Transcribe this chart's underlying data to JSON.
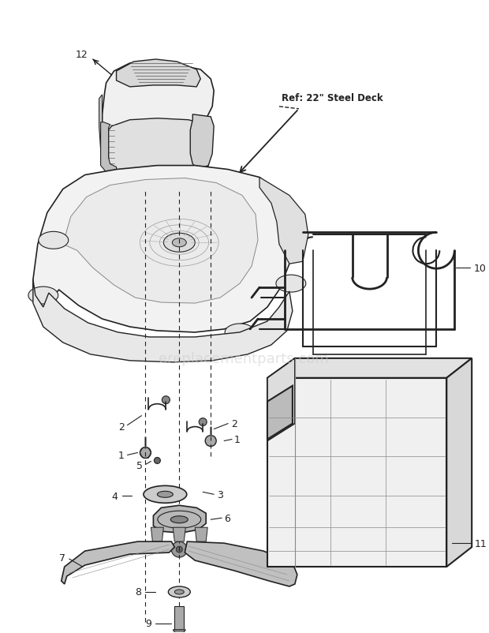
{
  "bg_color": "#ffffff",
  "line_color": "#222222",
  "label_color": "#111111",
  "watermark_text": "ereplacementparts.com",
  "ref_text": "Ref: 22\" Steel Deck",
  "figsize": [
    6.2,
    8.03
  ],
  "dpi": 100
}
